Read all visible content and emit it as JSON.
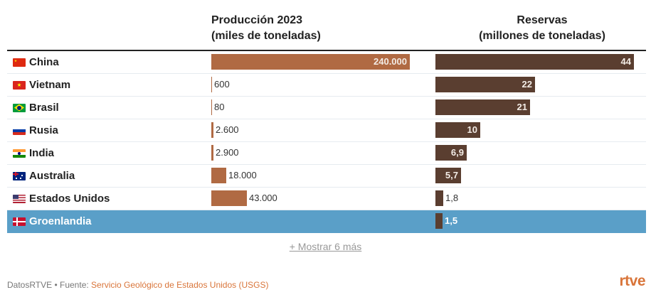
{
  "header": {
    "production_title_line1": "Producción 2023",
    "production_title_line2": "(miles de toneladas)",
    "reserves_title_line1": "Reservas",
    "reserves_title_line2": "(millones de toneladas)"
  },
  "colors": {
    "production_bar": "#b06a43",
    "reserves_bar": "#5a3e30",
    "highlight_row": "#5a9fc8",
    "source_link": "#d9753a"
  },
  "chart_data": {
    "type": "bar",
    "title": "",
    "categories": [
      "China",
      "Vietnam",
      "Brasil",
      "Rusia",
      "India",
      "Australia",
      "Estados Unidos",
      "Groenlandia"
    ],
    "highlighted_category": "Groenlandia",
    "series": [
      {
        "name": "Producción 2023 (miles de toneladas)",
        "values": [
          240000,
          600,
          80,
          2600,
          2900,
          18000,
          43000,
          null
        ],
        "labels": [
          "240.000",
          "600",
          "80",
          "2.600",
          "2.900",
          "18.000",
          "43.000",
          ""
        ],
        "max": 240000
      },
      {
        "name": "Reservas (millones de toneladas)",
        "values": [
          44,
          22,
          21,
          10,
          6.9,
          5.7,
          1.8,
          1.5
        ],
        "labels": [
          "44",
          "22",
          "21",
          "10",
          "6,9",
          "5,7",
          "1,8",
          "1,5"
        ],
        "max": 44
      }
    ]
  },
  "rows": [
    {
      "country": "China",
      "flag": "china-flag-icon"
    },
    {
      "country": "Vietnam",
      "flag": "vietnam-flag-icon"
    },
    {
      "country": "Brasil",
      "flag": "brazil-flag-icon"
    },
    {
      "country": "Rusia",
      "flag": "russia-flag-icon"
    },
    {
      "country": "India",
      "flag": "india-flag-icon"
    },
    {
      "country": "Australia",
      "flag": "australia-flag-icon"
    },
    {
      "country": "Estados Unidos",
      "flag": "usa-flag-icon"
    },
    {
      "country": "Groenlandia",
      "flag": "denmark-flag-icon"
    }
  ],
  "show_more": "+ Mostrar 6 más",
  "footer": {
    "prefix": "DatosRTVE • Fuente: ",
    "source": "Servicio Geológico de Estados Unidos (USGS)"
  },
  "logo": "rtve"
}
